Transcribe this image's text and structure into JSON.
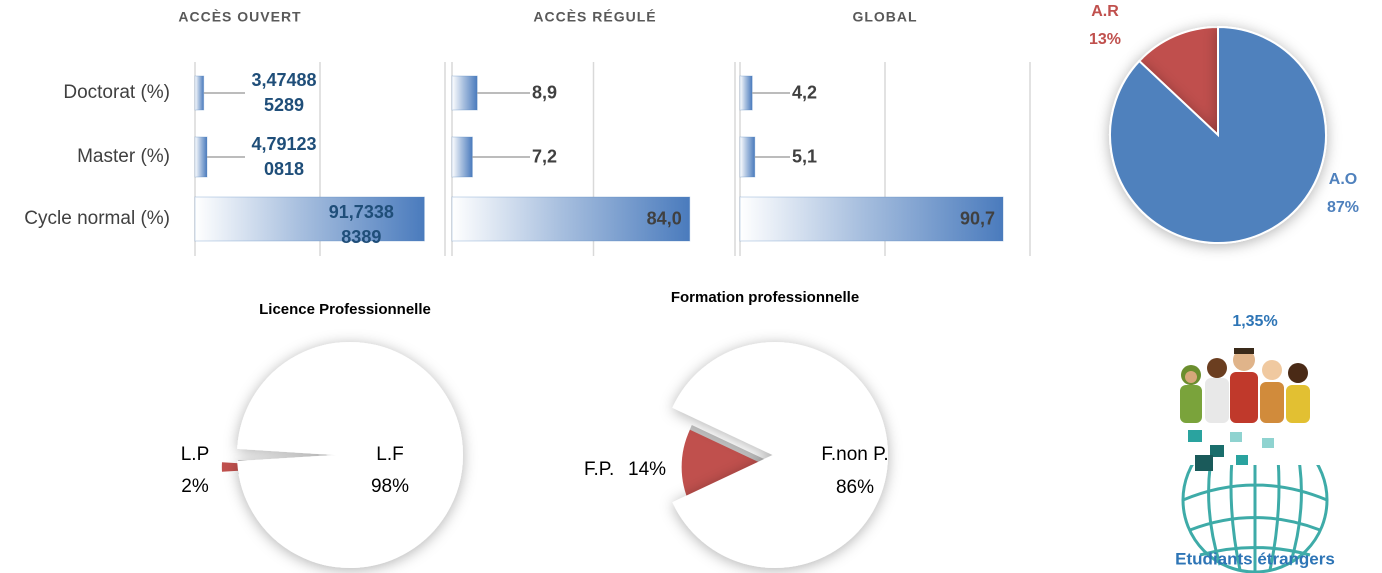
{
  "chart_data": [
    {
      "type": "bar",
      "orientation": "horizontal",
      "categories": [
        "Doctorat (%)",
        "Master (%)",
        "Cycle normal (%)"
      ],
      "xlim": [
        0,
        100
      ],
      "xticks": [
        0,
        50,
        100
      ],
      "grid": true,
      "series": [
        {
          "name": "ACCÈS OUVERT",
          "color": "#4f81bd",
          "values": [
            3.474885289,
            4.791230818,
            91.73388389
          ],
          "value_labels": [
            "3,474885289",
            "4,791230818",
            "91,73388389"
          ]
        },
        {
          "name": "ACCÈS RÉGULÉ",
          "color": "#4f81bd",
          "values": [
            8.9,
            7.2,
            84.0
          ],
          "value_labels": [
            "8,9",
            "7,2",
            "84,0"
          ]
        },
        {
          "name": "GLOBAL",
          "color": "#4f81bd",
          "values": [
            4.2,
            5.1,
            90.7
          ],
          "value_labels": [
            "4,2",
            "5,1",
            "90,7"
          ]
        }
      ]
    },
    {
      "type": "pie",
      "categories": [
        "A.R",
        "A.O"
      ],
      "values": [
        13,
        87
      ],
      "value_labels": [
        "13%",
        "87%"
      ],
      "colors": [
        "#c0504d",
        "#4f81bd"
      ]
    },
    {
      "type": "pie",
      "title": "Licence Professionnelle",
      "categories": [
        "L.P",
        "L.F"
      ],
      "values": [
        2,
        98
      ],
      "value_labels": [
        "2%",
        "98%"
      ],
      "colors": [
        "#c0504d",
        "#ffffff"
      ]
    },
    {
      "type": "pie",
      "title": "Formation professionnelle",
      "categories": [
        "F.P.",
        "F.non P."
      ],
      "values": [
        14,
        86
      ],
      "value_labels": [
        "14%",
        "86%"
      ],
      "colors": [
        "#c0504d",
        "#ffffff"
      ]
    },
    {
      "type": "stat",
      "title": "Etudiants étrangers",
      "value": 1.35,
      "value_label": "1,35%"
    }
  ]
}
